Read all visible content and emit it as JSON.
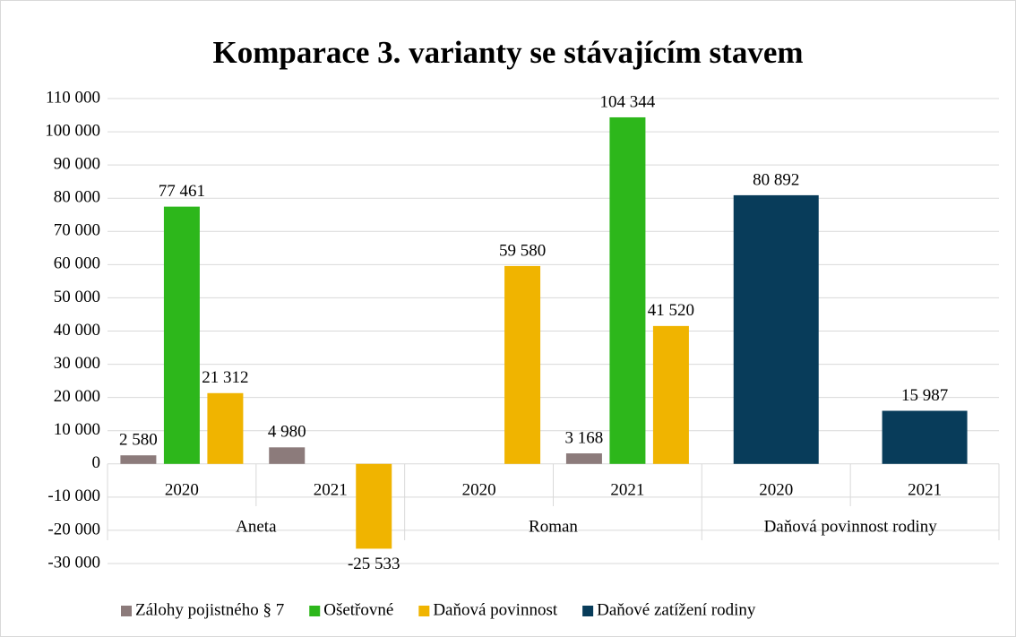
{
  "chart_data": {
    "type": "bar",
    "title": "Komparace 3. varianty se stávajícím stavem",
    "groups": [
      "Aneta",
      "Roman",
      "Daňová povinnost rodiny"
    ],
    "categories": [
      "2020",
      "2021",
      "2020",
      "2021",
      "2020",
      "2021"
    ],
    "series": [
      {
        "name": "Zálohy pojistného § 7",
        "color": "#8c7b7b",
        "values": [
          2580,
          4980,
          null,
          3168,
          null,
          null
        ],
        "value_labels": [
          "2 580",
          "4 980",
          null,
          "3 168",
          null,
          null
        ]
      },
      {
        "name": "Ošetřovné",
        "color": "#2db71b",
        "values": [
          77461,
          null,
          null,
          104344,
          null,
          null
        ],
        "value_labels": [
          "77 461",
          null,
          null,
          "104 344",
          null,
          null
        ]
      },
      {
        "name": "Daňová povinnost",
        "color": "#f0b400",
        "values": [
          21312,
          -25533,
          59580,
          41520,
          null,
          null
        ],
        "value_labels": [
          "21 312",
          "-25 533",
          "59 580",
          "41 520",
          null,
          null
        ]
      },
      {
        "name": "Daňové zatížení rodiny",
        "color": "#083c5a",
        "values": [
          null,
          null,
          null,
          null,
          80892,
          15987
        ],
        "value_labels": [
          null,
          null,
          null,
          null,
          "80 892",
          "15 987"
        ]
      }
    ],
    "ylim": [
      -30000,
      110000
    ],
    "yticks": [
      {
        "value": -30000,
        "label": "-30 000"
      },
      {
        "value": -20000,
        "label": "-20 000"
      },
      {
        "value": -10000,
        "label": "-10 000"
      },
      0,
      {
        "value": 10000,
        "label": "10 000"
      },
      {
        "value": 20000,
        "label": "20 000"
      },
      {
        "value": 30000,
        "label": "30 000"
      },
      {
        "value": 40000,
        "label": "40 000"
      },
      {
        "value": 50000,
        "label": "50 000"
      },
      {
        "value": 60000,
        "label": "60 000"
      },
      {
        "value": 70000,
        "label": "70 000"
      },
      {
        "value": 80000,
        "label": "80 000"
      },
      {
        "value": 90000,
        "label": "90 000"
      },
      {
        "value": 100000,
        "label": "100 000"
      },
      {
        "value": 110000,
        "label": "110 000"
      }
    ],
    "grid": true,
    "legend": "bottom"
  }
}
